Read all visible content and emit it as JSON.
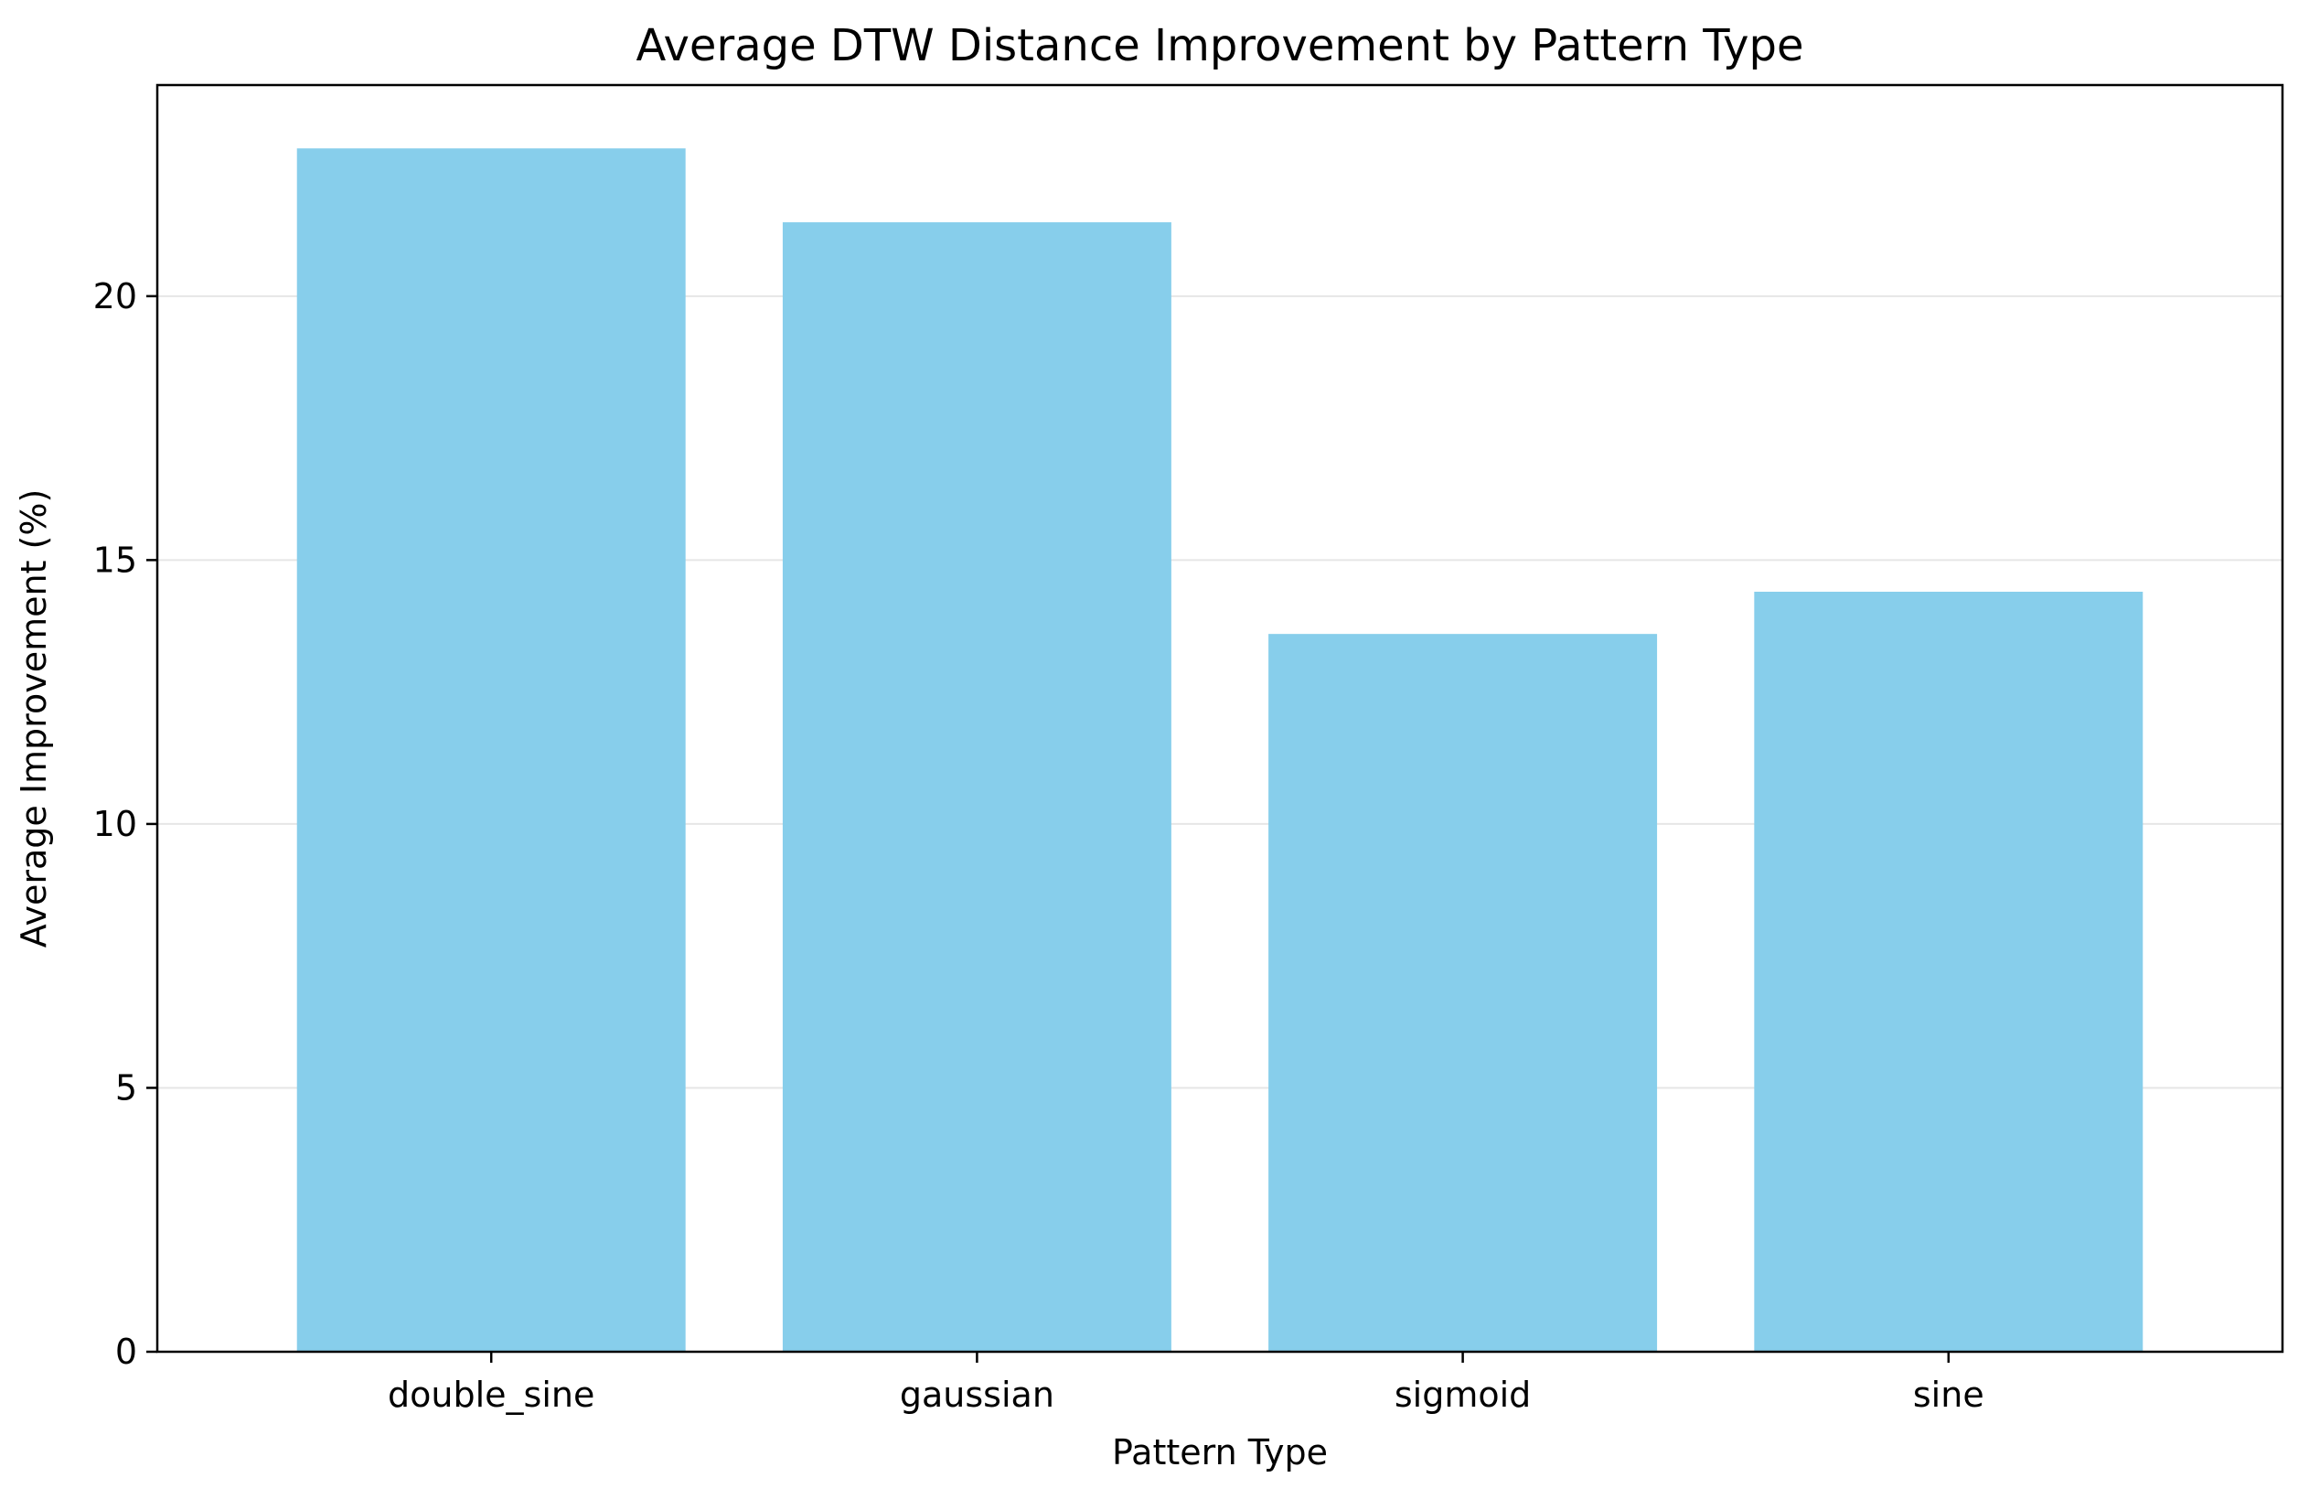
{
  "chart_data": {
    "type": "bar",
    "title": "Average DTW Distance Improvement by Pattern Type",
    "xlabel": "Pattern Type",
    "ylabel": "Average Improvement (%)",
    "categories": [
      "double_sine",
      "gaussian",
      "sigmoid",
      "sine"
    ],
    "values": [
      22.8,
      21.4,
      13.6,
      14.4
    ],
    "ylim": [
      0,
      24.0
    ],
    "yticks": [
      0,
      5,
      10,
      15,
      20
    ],
    "grid": "horizontal",
    "bar_color": "#87CEEB",
    "grid_color": "#e6e6e6"
  }
}
